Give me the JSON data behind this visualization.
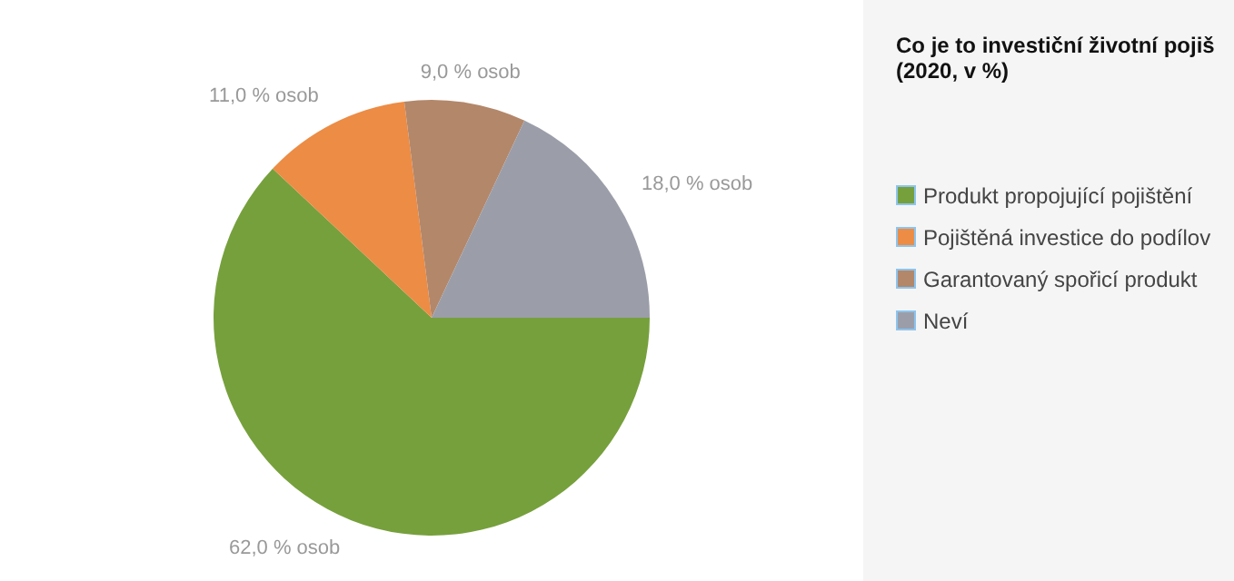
{
  "chart_data": {
    "type": "pie",
    "title": "Co je to investiční životní pojiš",
    "subtitle": "(2020, v %)",
    "categories": [
      "Produkt propojující pojištění",
      "Pojištěná investice do podílov",
      "Garantovaný spořicí produkt",
      "Neví"
    ],
    "values": [
      62,
      11,
      9,
      18
    ],
    "colors": [
      "#76a03c",
      "#ec8c45",
      "#b3876a",
      "#9b9ea9"
    ],
    "value_labels": [
      "62,0 % osob",
      "11,0 % osob",
      "9,0 % osob",
      "18,0 % osob"
    ],
    "legend": "right"
  }
}
